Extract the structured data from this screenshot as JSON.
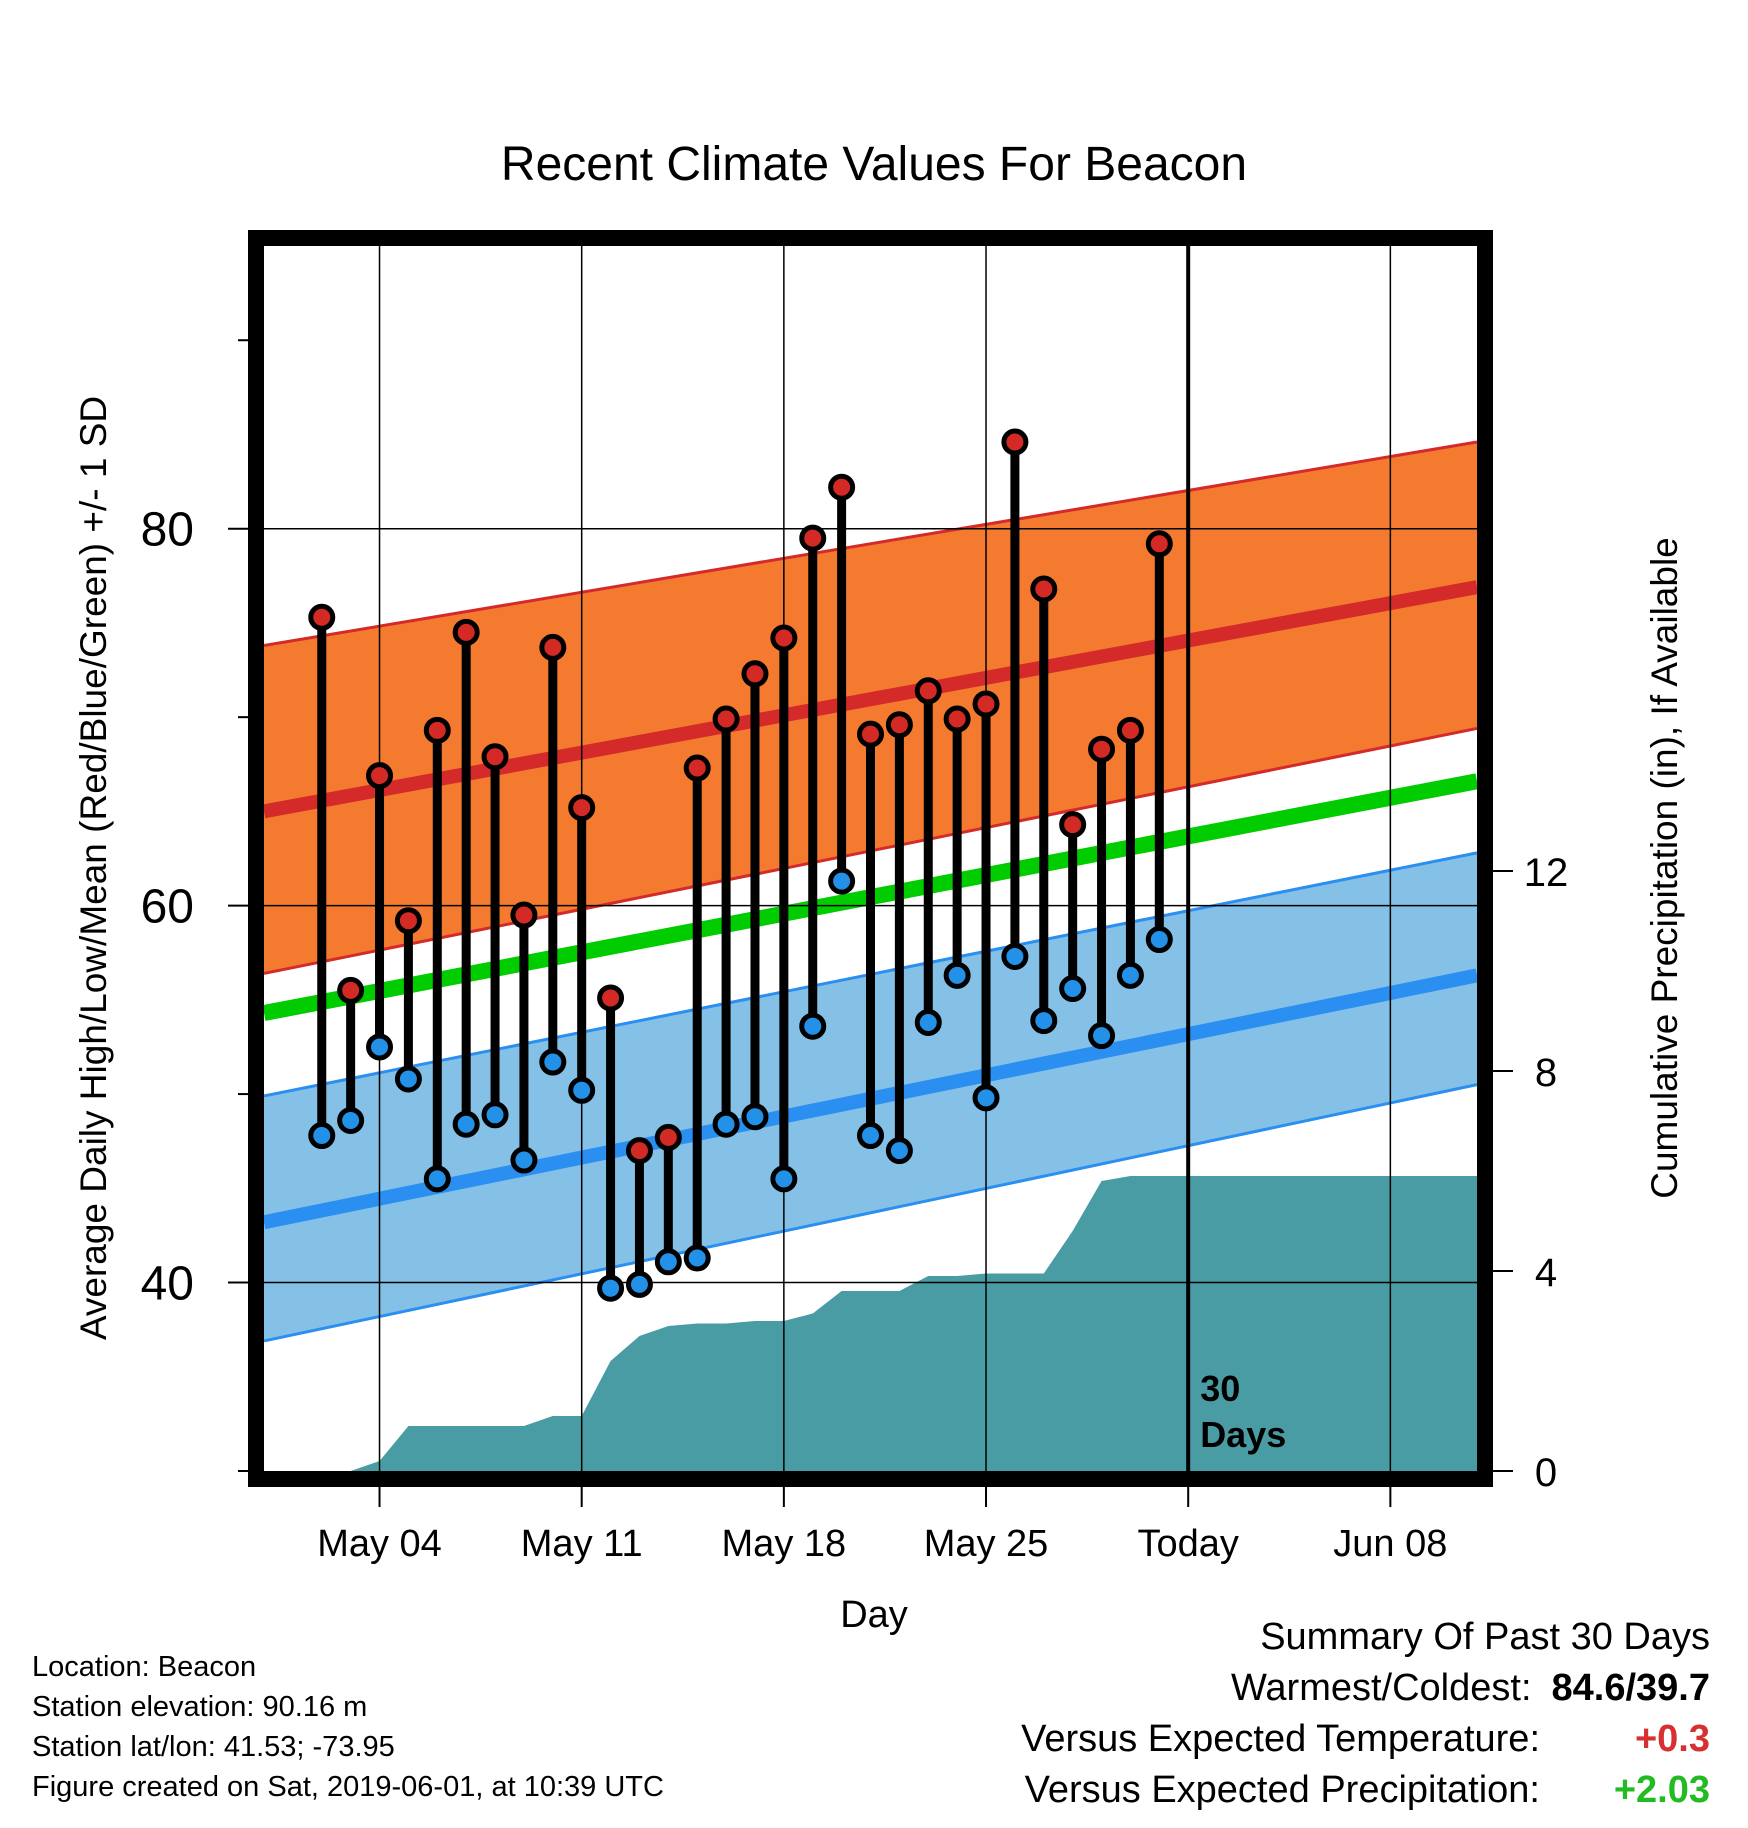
{
  "chart_data": {
    "type": "line",
    "title": "Recent Climate Values For Beacon",
    "xlabel": "Day",
    "ylabel": "Average Daily High/Low/Mean (Red/Blue/Green) +/- 1 SD",
    "y2label": "Cumulative Precipitation (in), If Available",
    "ylim": [
      30,
      95
    ],
    "y2lim": [
      0,
      24.5
    ],
    "xlim": [
      "2019-04-30",
      "2019-06-11"
    ],
    "x_ticks": [
      {
        "date": "2019-05-04",
        "label": "May 04"
      },
      {
        "date": "2019-05-11",
        "label": "May 11"
      },
      {
        "date": "2019-05-18",
        "label": "May 18"
      },
      {
        "date": "2019-05-25",
        "label": "May 25"
      },
      {
        "date": "2019-06-01",
        "label": "Today"
      },
      {
        "date": "2019-06-08",
        "label": "Jun 08"
      }
    ],
    "y_ticks": [
      40,
      60,
      80
    ],
    "y2_ticks": [
      0,
      4,
      8,
      12
    ],
    "grid": true,
    "today_marker": {
      "date": "2019-06-01",
      "label_line1": "30",
      "label_line2": "Days"
    },
    "normals": {
      "dates": [
        "2019-04-30",
        "2019-06-11"
      ],
      "high_mean": [
        65.0,
        76.9
      ],
      "high_upper": [
        73.8,
        84.6
      ],
      "high_lower": [
        56.4,
        69.4
      ],
      "low_mean": [
        43.2,
        56.3
      ],
      "low_upper": [
        49.9,
        62.8
      ],
      "low_lower": [
        36.9,
        50.5
      ],
      "daily_mean": [
        54.3,
        66.6
      ]
    },
    "daily": {
      "dates": [
        "2019-05-02",
        "2019-05-03",
        "2019-05-04",
        "2019-05-05",
        "2019-05-06",
        "2019-05-07",
        "2019-05-08",
        "2019-05-09",
        "2019-05-10",
        "2019-05-11",
        "2019-05-12",
        "2019-05-13",
        "2019-05-14",
        "2019-05-15",
        "2019-05-16",
        "2019-05-17",
        "2019-05-18",
        "2019-05-19",
        "2019-05-20",
        "2019-05-21",
        "2019-05-22",
        "2019-05-23",
        "2019-05-24",
        "2019-05-25",
        "2019-05-26",
        "2019-05-27",
        "2019-05-28",
        "2019-05-29",
        "2019-05-30",
        "2019-05-31"
      ],
      "high": [
        75.3,
        55.5,
        66.9,
        59.2,
        69.3,
        74.5,
        67.9,
        59.5,
        73.7,
        65.2,
        55.1,
        47.0,
        47.7,
        67.3,
        69.9,
        72.3,
        74.2,
        79.5,
        82.2,
        69.1,
        69.6,
        71.4,
        69.9,
        70.7,
        84.6,
        76.8,
        64.3,
        68.3,
        69.3,
        79.2
      ],
      "low": [
        47.8,
        48.6,
        52.5,
        50.8,
        45.5,
        48.4,
        48.9,
        46.5,
        51.7,
        50.2,
        39.7,
        39.9,
        41.1,
        41.3,
        48.4,
        48.8,
        45.5,
        53.6,
        61.3,
        47.8,
        47.0,
        53.8,
        56.3,
        49.8,
        57.3,
        53.9,
        55.6,
        53.1,
        56.3,
        58.2
      ]
    },
    "precip": {
      "dates": [
        "2019-05-02",
        "2019-05-03",
        "2019-05-04",
        "2019-05-05",
        "2019-05-06",
        "2019-05-07",
        "2019-05-08",
        "2019-05-09",
        "2019-05-10",
        "2019-05-11",
        "2019-05-12",
        "2019-05-13",
        "2019-05-14",
        "2019-05-15",
        "2019-05-16",
        "2019-05-17",
        "2019-05-18",
        "2019-05-19",
        "2019-05-20",
        "2019-05-21",
        "2019-05-22",
        "2019-05-23",
        "2019-05-24",
        "2019-05-25",
        "2019-05-26",
        "2019-05-27",
        "2019-05-28",
        "2019-05-29",
        "2019-05-30",
        "2019-05-31",
        "2019-06-01",
        "2019-06-11"
      ],
      "cumulative": [
        0.0,
        0.0,
        0.2,
        0.9,
        0.9,
        0.9,
        0.9,
        0.9,
        1.1,
        1.1,
        2.2,
        2.7,
        2.9,
        2.95,
        2.95,
        3.0,
        3.0,
        3.15,
        3.6,
        3.6,
        3.6,
        3.9,
        3.9,
        3.95,
        3.95,
        3.95,
        4.8,
        5.8,
        5.9,
        5.9,
        5.9,
        5.9
      ]
    },
    "colors": {
      "high_band": "#f47a30",
      "high_line": "#d42a2a",
      "high_marker": "#d32a26",
      "low_band": "#85c1e7",
      "low_line": "#2a8ff0",
      "low_marker": "#2491e8",
      "mean_line": "#00cc00",
      "precip": "#4a9ca4"
    }
  },
  "location_info": [
    "Location: Beacon",
    "Station elevation: 90.16 m",
    "Station lat/lon: 41.53; -73.95",
    "Figure created on Sat, 2019-06-01, at 10:39 UTC"
  ],
  "summary": {
    "title": "Summary Of Past 30 Days",
    "warmest_coldest_label": "Warmest/Coldest:",
    "warmest_coldest_value": "84.6/39.7",
    "temp_label": "Versus Expected Temperature:",
    "temp_value": "+0.3",
    "temp_color": "#d63030",
    "precip_label": "Versus Expected Precipitation:",
    "precip_value": "+2.03",
    "precip_color": "#22bb22"
  }
}
